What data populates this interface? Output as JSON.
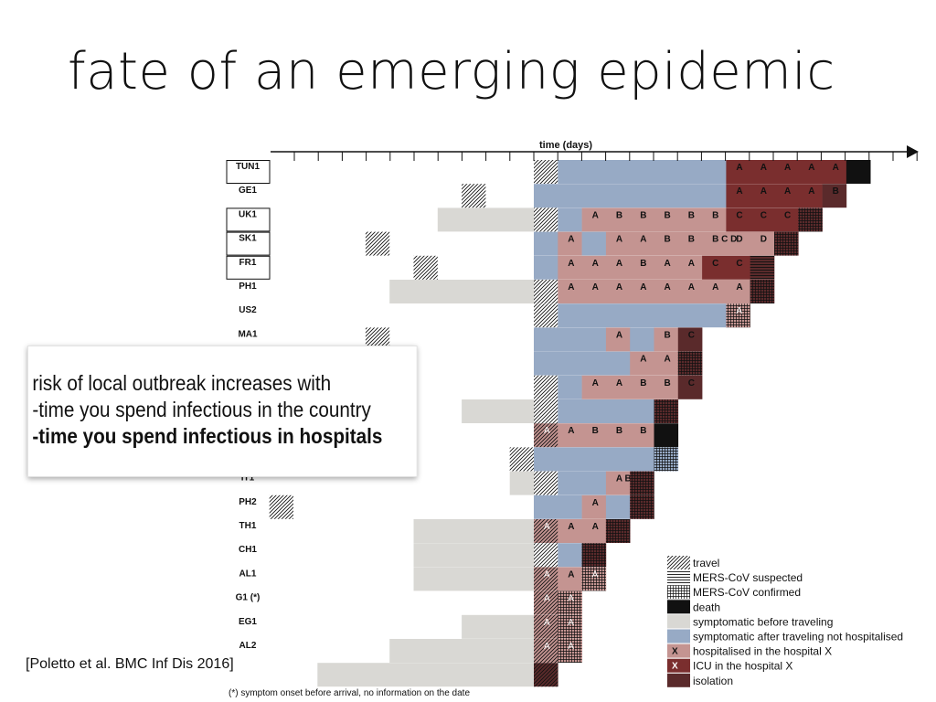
{
  "title": "fate of an emerging epidemic",
  "axis_label": "time (days)",
  "callout": {
    "line1": "risk of local outbreak increases with",
    "line2": "-time you spend infectious in the country",
    "line3": "-time you spend infectious in hospitals"
  },
  "citation": "[Poletto et al. BMC Inf Dis 2016]",
  "footnote": "(*) symptom onset before arrival, no information on the date",
  "colors": {
    "travel": "#222222",
    "suspected": "#222222",
    "confirmed": "#222222",
    "death": "#111111",
    "symptomatic_before": "#d9d8d4",
    "symptomatic_after": "#97aac5",
    "hospitalised": "#c49491",
    "icu": "#7a2e2e",
    "isolation": "#5a2a2b"
  },
  "legend": [
    {
      "key": "travel",
      "label": "travel",
      "pattern": "hatch"
    },
    {
      "key": "suspected",
      "label": "MERS-CoV suspected",
      "pattern": "hlines"
    },
    {
      "key": "confirmed",
      "label": "MERS-CoV confirmed",
      "pattern": "grid"
    },
    {
      "key": "death",
      "label": "death",
      "pattern": "solid"
    },
    {
      "key": "symptomatic_before",
      "label": "symptomatic before traveling",
      "pattern": "solid"
    },
    {
      "key": "symptomatic_after",
      "label": "symptomatic after traveling not hospitalised",
      "pattern": "solid"
    },
    {
      "key": "hospitalised",
      "label": "hospitalised in the hospital X",
      "pattern": "solid",
      "marker": "X"
    },
    {
      "key": "icu",
      "label": "ICU in the hospital X",
      "pattern": "solid",
      "marker": "X"
    },
    {
      "key": "isolation",
      "label": "isolation",
      "pattern": "solid"
    }
  ],
  "rows": [
    {
      "label": "TUN1",
      "boxed": true,
      "segments": [
        {
          "t": "travel",
          "s": 0,
          "e": 1
        },
        {
          "t": "symptomatic_after",
          "s": 1,
          "e": 8
        },
        {
          "t": "icu",
          "s": 8,
          "e": 13,
          "letters": [
            "A",
            "A",
            "A",
            "A",
            "A"
          ]
        },
        {
          "t": "death",
          "s": 13,
          "e": 14
        }
      ]
    },
    {
      "label": "GE1",
      "segments": [
        {
          "t": "travel",
          "s": -3,
          "e": -2
        },
        {
          "t": "symptomatic_after",
          "s": 0,
          "e": 8
        },
        {
          "t": "icu",
          "s": 8,
          "e": 12,
          "letters": [
            "A",
            "A",
            "A",
            "A"
          ]
        },
        {
          "t": "isolation",
          "s": 12,
          "e": 13,
          "letters": [
            "B"
          ]
        }
      ]
    },
    {
      "label": "UK1",
      "boxed": true,
      "segments": [
        {
          "t": "symptomatic_before",
          "s": -4,
          "e": 0
        },
        {
          "t": "travel",
          "s": 0,
          "e": 1
        },
        {
          "t": "symptomatic_after",
          "s": 1,
          "e": 2
        },
        {
          "t": "hospitalised",
          "s": 2,
          "e": 8,
          "letters": [
            "A",
            "B",
            "B",
            "B",
            "B",
            "B"
          ]
        },
        {
          "t": "icu",
          "s": 8,
          "e": 11,
          "letters": [
            "C",
            "C",
            "C"
          ]
        },
        {
          "t": "isolation",
          "s": 11,
          "e": 12,
          "pattern": "grid"
        }
      ]
    },
    {
      "label": "SK1",
      "boxed": true,
      "segments": [
        {
          "t": "travel",
          "s": -7,
          "e": -6
        },
        {
          "t": "symptomatic_after",
          "s": 0,
          "e": 1
        },
        {
          "t": "hospitalised",
          "s": 1,
          "e": 2,
          "letters": [
            "A"
          ]
        },
        {
          "t": "symptomatic_after",
          "s": 2,
          "e": 3
        },
        {
          "t": "hospitalised",
          "s": 3,
          "e": 10,
          "letters": [
            "A",
            "A",
            "B",
            "B",
            "B C D",
            "D",
            "D"
          ]
        },
        {
          "t": "isolation",
          "s": 10,
          "e": 11,
          "pattern": "grid"
        }
      ]
    },
    {
      "label": "FR1",
      "boxed": true,
      "segments": [
        {
          "t": "travel",
          "s": -5,
          "e": -4
        },
        {
          "t": "symptomatic_after",
          "s": 0,
          "e": 1
        },
        {
          "t": "hospitalised",
          "s": 1,
          "e": 7,
          "letters": [
            "A",
            "A",
            "A",
            "B",
            "A",
            "A"
          ]
        },
        {
          "t": "icu",
          "s": 7,
          "e": 9,
          "letters": [
            "C",
            "C"
          ]
        },
        {
          "t": "isolation",
          "s": 9,
          "e": 10,
          "pattern": "hlines"
        }
      ]
    },
    {
      "label": "PH1",
      "segments": [
        {
          "t": "symptomatic_before",
          "s": -6,
          "e": 0
        },
        {
          "t": "travel",
          "s": 0,
          "e": 1
        },
        {
          "t": "hospitalised",
          "s": 1,
          "e": 9,
          "letters": [
            "A",
            "A",
            "A",
            "A",
            "A",
            "A",
            "A",
            "A"
          ]
        },
        {
          "t": "isolation",
          "s": 9,
          "e": 10,
          "pattern": "grid"
        }
      ]
    },
    {
      "label": "US2",
      "segments": [
        {
          "t": "travel",
          "s": 0,
          "e": 1
        },
        {
          "t": "symptomatic_after",
          "s": 1,
          "e": 8
        },
        {
          "t": "hospitalised",
          "s": 8,
          "e": 9,
          "letters": [
            "A"
          ],
          "pattern": "grid"
        }
      ]
    },
    {
      "label": "MA1",
      "segments": [
        {
          "t": "travel",
          "s": -7,
          "e": -6
        },
        {
          "t": "symptomatic_after",
          "s": 0,
          "e": 3
        },
        {
          "t": "hospitalised",
          "s": 3,
          "e": 4,
          "letters": [
            "A"
          ]
        },
        {
          "t": "symptomatic_after",
          "s": 4,
          "e": 5
        },
        {
          "t": "hospitalised",
          "s": 5,
          "e": 6,
          "letters": [
            "B"
          ]
        },
        {
          "t": "isolation",
          "s": 6,
          "e": 7,
          "letters": [
            "C"
          ]
        }
      ]
    },
    {
      "label": "",
      "segments": [
        {
          "t": "symptomatic_after",
          "s": 0,
          "e": 4
        },
        {
          "t": "hospitalised",
          "s": 4,
          "e": 6,
          "letters": [
            "A",
            "A"
          ]
        },
        {
          "t": "isolation",
          "s": 6,
          "e": 7,
          "pattern": "grid"
        }
      ]
    },
    {
      "label": "",
      "segments": [
        {
          "t": "travel",
          "s": 0,
          "e": 1
        },
        {
          "t": "symptomatic_after",
          "s": 1,
          "e": 2
        },
        {
          "t": "hospitalised",
          "s": 2,
          "e": 6,
          "letters": [
            "A",
            "A",
            "B",
            "B"
          ]
        },
        {
          "t": "isolation",
          "s": 6,
          "e": 7,
          "letters": [
            "C"
          ]
        }
      ]
    },
    {
      "label": "",
      "segments": [
        {
          "t": "symptomatic_before",
          "s": -3,
          "e": 0
        },
        {
          "t": "travel",
          "s": 0,
          "e": 1
        },
        {
          "t": "symptomatic_after",
          "s": 1,
          "e": 5
        },
        {
          "t": "isolation",
          "s": 5,
          "e": 6,
          "pattern": "grid"
        }
      ]
    },
    {
      "label": "",
      "segments": [
        {
          "t": "hospitalised",
          "s": 0,
          "e": 1,
          "letters": [
            "A"
          ],
          "pattern": "hatch"
        },
        {
          "t": "hospitalised",
          "s": 1,
          "e": 5,
          "letters": [
            "A",
            "B",
            "B",
            "B"
          ]
        },
        {
          "t": "death",
          "s": 5,
          "e": 6
        }
      ]
    },
    {
      "label": "",
      "segments": [
        {
          "t": "travel",
          "s": -1,
          "e": 0
        },
        {
          "t": "symptomatic_after",
          "s": 0,
          "e": 5
        },
        {
          "t": "symptomatic_after",
          "s": 5,
          "e": 6,
          "pattern": "grid"
        }
      ]
    },
    {
      "label": "IT1",
      "segments": [
        {
          "t": "symptomatic_before",
          "s": -1,
          "e": 0
        },
        {
          "t": "travel",
          "s": 0,
          "e": 1
        },
        {
          "t": "symptomatic_after",
          "s": 1,
          "e": 3
        },
        {
          "t": "hospitalised",
          "s": 3,
          "e": 4,
          "letters": [
            "A B"
          ]
        },
        {
          "t": "isolation",
          "s": 4,
          "e": 5,
          "pattern": "grid"
        }
      ]
    },
    {
      "label": "PH2",
      "segments": [
        {
          "t": "travel",
          "s": -11,
          "e": -10
        },
        {
          "t": "symptomatic_after",
          "s": 0,
          "e": 2
        },
        {
          "t": "hospitalised",
          "s": 2,
          "e": 3,
          "letters": [
            "A"
          ]
        },
        {
          "t": "symptomatic_after",
          "s": 3,
          "e": 4
        },
        {
          "t": "isolation",
          "s": 4,
          "e": 5,
          "pattern": "grid"
        }
      ]
    },
    {
      "label": "TH1",
      "segments": [
        {
          "t": "symptomatic_before",
          "s": -5,
          "e": 0
        },
        {
          "t": "hospitalised",
          "s": 0,
          "e": 1,
          "letters": [
            "A"
          ],
          "pattern": "hatch"
        },
        {
          "t": "hospitalised",
          "s": 1,
          "e": 3,
          "letters": [
            "A",
            "A"
          ]
        },
        {
          "t": "isolation",
          "s": 3,
          "e": 4,
          "pattern": "grid"
        }
      ]
    },
    {
      "label": "CH1",
      "segments": [
        {
          "t": "symptomatic_before",
          "s": -5,
          "e": 0
        },
        {
          "t": "travel",
          "s": 0,
          "e": 1
        },
        {
          "t": "symptomatic_after",
          "s": 1,
          "e": 2
        },
        {
          "t": "isolation",
          "s": 2,
          "e": 3,
          "pattern": "grid"
        }
      ]
    },
    {
      "label": "AL1",
      "segments": [
        {
          "t": "symptomatic_before",
          "s": -5,
          "e": 0
        },
        {
          "t": "hospitalised",
          "s": 0,
          "e": 1,
          "letters": [
            "A"
          ],
          "pattern": "hatch"
        },
        {
          "t": "hospitalised",
          "s": 1,
          "e": 2,
          "letters": [
            "A"
          ]
        },
        {
          "t": "hospitalised",
          "s": 2,
          "e": 3,
          "letters": [
            "A"
          ],
          "pattern": "grid"
        }
      ]
    },
    {
      "label": "G1 (*)",
      "segments": [
        {
          "t": "hospitalised",
          "s": 0,
          "e": 1,
          "letters": [
            "A"
          ],
          "pattern": "hatch"
        },
        {
          "t": "hospitalised",
          "s": 1,
          "e": 2,
          "letters": [
            "A"
          ],
          "pattern": "grid"
        }
      ]
    },
    {
      "label": "EG1",
      "segments": [
        {
          "t": "symptomatic_before",
          "s": -3,
          "e": 0
        },
        {
          "t": "hospitalised",
          "s": 0,
          "e": 1,
          "letters": [
            "A"
          ],
          "pattern": "hatch"
        },
        {
          "t": "hospitalised",
          "s": 1,
          "e": 2,
          "letters": [
            "A"
          ],
          "pattern": "grid"
        }
      ]
    },
    {
      "label": "AL2",
      "segments": [
        {
          "t": "symptomatic_before",
          "s": -6,
          "e": 0
        },
        {
          "t": "hospitalised",
          "s": 0,
          "e": 1,
          "letters": [
            "A"
          ],
          "pattern": "hatch"
        },
        {
          "t": "hospitalised",
          "s": 1,
          "e": 2,
          "letters": [
            "A"
          ],
          "pattern": "grid"
        }
      ]
    },
    {
      "label": "",
      "segments": [
        {
          "t": "symptomatic_before",
          "s": -9,
          "e": 0
        },
        {
          "t": "isolation",
          "s": 0,
          "e": 1,
          "pattern": "hatch"
        }
      ]
    }
  ]
}
